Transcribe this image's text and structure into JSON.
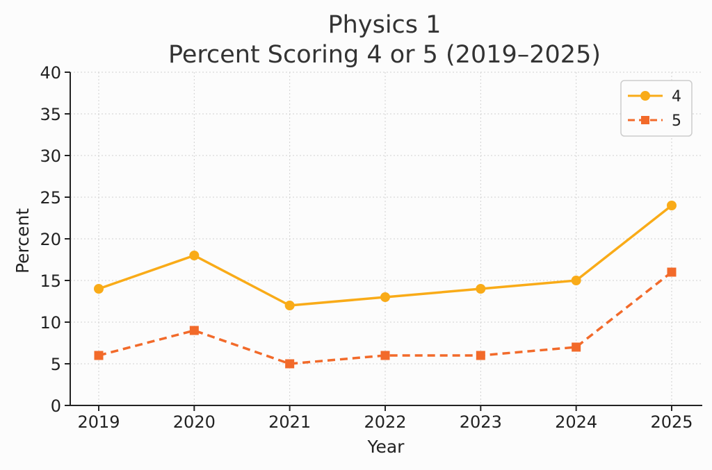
{
  "chart_data": {
    "type": "line",
    "title": [
      "Physics 1",
      "Percent Scoring 4 or 5 (2019–2025)"
    ],
    "xlabel": "Year",
    "ylabel": "Percent",
    "categories": [
      "2019",
      "2020",
      "2021",
      "2022",
      "2023",
      "2024",
      "2025"
    ],
    "ylim": [
      0,
      40
    ],
    "yticks": [
      "0",
      "5",
      "10",
      "15",
      "20",
      "25",
      "30",
      "35",
      "40"
    ],
    "grid": true,
    "legend_position": "top-right",
    "series": [
      {
        "name": "4",
        "values": [
          14,
          18,
          12,
          13,
          14,
          15,
          24
        ],
        "color": "#F9AB18",
        "marker": "circle",
        "line_style": "solid"
      },
      {
        "name": "5",
        "values": [
          6,
          9,
          5,
          6,
          6,
          7,
          16
        ],
        "color": "#F26A2A",
        "marker": "square",
        "line_style": "dashed"
      }
    ]
  }
}
